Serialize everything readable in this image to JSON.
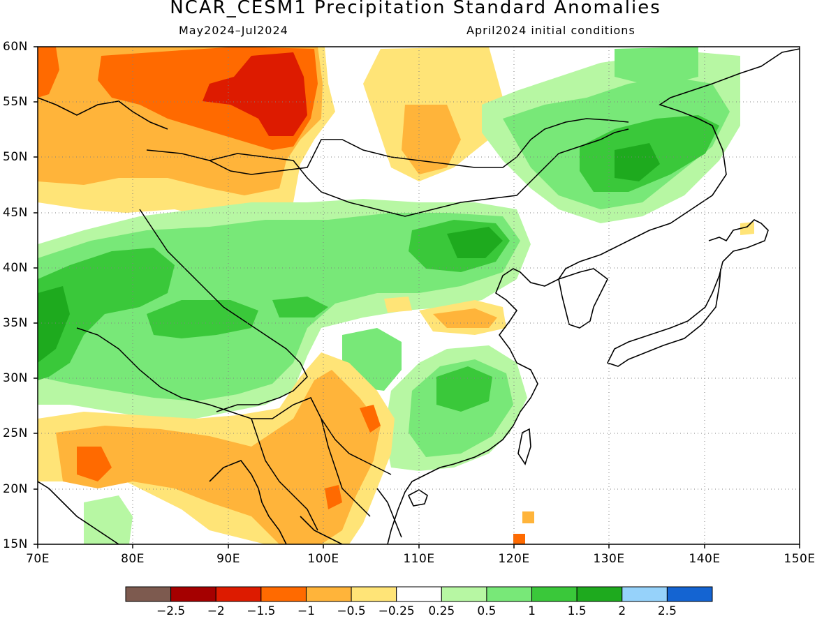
{
  "title": "NCAR_CESM1 Precipitation Standard Anomalies",
  "subtitle_left": "May2024–Jul2024",
  "subtitle_right": "April2024 initial conditions",
  "lat_labels": [
    "60N",
    "55N",
    "50N",
    "45N",
    "40N",
    "35N",
    "30N",
    "25N",
    "20N",
    "15N"
  ],
  "lon_labels": [
    "70E",
    "80E",
    "90E",
    "100E",
    "110E",
    "120E",
    "130E",
    "140E",
    "150E"
  ],
  "colorbar": {
    "colors": [
      "#7d5a4f",
      "#a50000",
      "#dd1b00",
      "#ff6a00",
      "#ffb43a",
      "#ffe477",
      "#ffffff",
      "#b7f7a3",
      "#78e878",
      "#3ac83a",
      "#1eaa1e",
      "#96d2fa",
      "#1464d2"
    ],
    "labels": [
      "−2.5",
      "−2",
      "−1.5",
      "−1",
      "−0.5",
      "−0.25",
      "0.25",
      "0.5",
      "1",
      "1.5",
      "2",
      "2.5"
    ]
  },
  "map": {
    "extent": {
      "lon": [
        70,
        150
      ],
      "lat": [
        15,
        60
      ]
    },
    "grid": "dotted"
  }
}
